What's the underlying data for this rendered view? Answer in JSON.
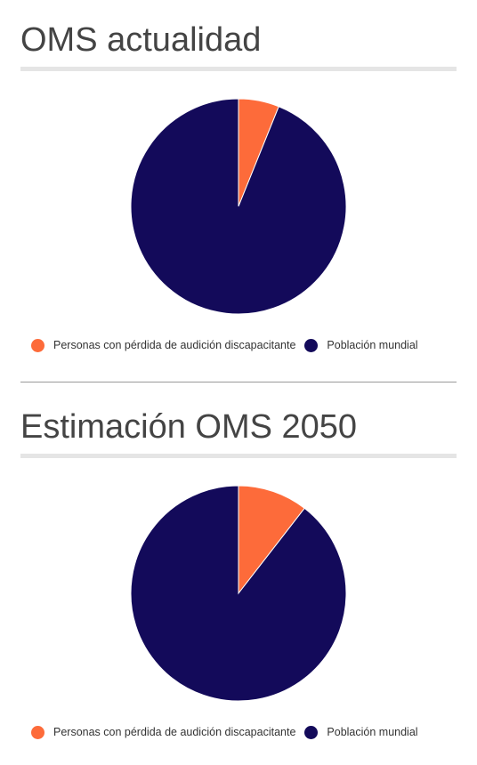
{
  "colors": {
    "hearing_loss": "#fd6b3a",
    "world_population": "#130a5a"
  },
  "chart_data": [
    {
      "type": "pie",
      "title": "OMS actualidad",
      "labels": [
        "Personas con pérdida de audición discapacitante",
        "Población mundial"
      ],
      "values": [
        6.1,
        93.9
      ],
      "colors": [
        "#fd6b3a",
        "#130a5a"
      ],
      "legend": "bottom",
      "start_angle": "top",
      "direction": "clockwise"
    },
    {
      "type": "pie",
      "title": "Estimación OMS 2050",
      "labels": [
        "Personas con pérdida de audición discapacitante",
        "Población mundial"
      ],
      "values": [
        10.5,
        89.5
      ],
      "colors": [
        "#fd6b3a",
        "#130a5a"
      ],
      "legend": "bottom",
      "start_angle": "top",
      "direction": "clockwise"
    }
  ]
}
